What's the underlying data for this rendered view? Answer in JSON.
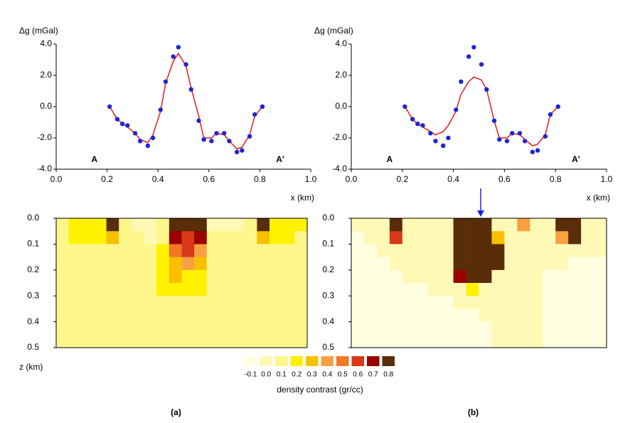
{
  "chart_data": [
    {
      "type": "line",
      "ylabel": "Δg (mGal)",
      "xlabel": "x (km)",
      "x": [
        0.21,
        0.24,
        0.26,
        0.28,
        0.31,
        0.33,
        0.36,
        0.38,
        0.41,
        0.43,
        0.46,
        0.48,
        0.51,
        0.53,
        0.56,
        0.58,
        0.61,
        0.63,
        0.66,
        0.68,
        0.71,
        0.73,
        0.76,
        0.78,
        0.81
      ],
      "series": [
        {
          "type": "line",
          "color": "#e8191b",
          "values": [
            0.0,
            -0.8,
            -1.1,
            -1.3,
            -1.7,
            -2.1,
            -2.3,
            -1.8,
            -0.3,
            1.5,
            2.9,
            3.4,
            2.6,
            1.2,
            -0.6,
            -2.0,
            -2.0,
            -1.7,
            -1.8,
            -2.2,
            -2.7,
            -2.6,
            -1.8,
            -0.6,
            0.0
          ]
        },
        {
          "type": "scatter",
          "color": "#1f24d6",
          "values": [
            0.0,
            -0.8,
            -1.1,
            -1.2,
            -1.7,
            -2.2,
            -2.5,
            -2.0,
            -0.2,
            1.6,
            3.2,
            3.8,
            2.7,
            1.1,
            -0.9,
            -2.1,
            -2.2,
            -1.7,
            -1.7,
            -2.2,
            -2.9,
            -2.8,
            -1.9,
            -0.5,
            0.0
          ]
        }
      ],
      "xlim": [
        0,
        1
      ],
      "ylim": [
        -4,
        4
      ],
      "xticks": [
        {
          "value": 0,
          "label": "0.0"
        },
        0.2,
        0.4,
        0.6,
        0.8,
        {
          "value": 1,
          "label": "1.0"
        }
      ],
      "yticks": [
        {
          "value": -4,
          "label": "-4.0"
        },
        {
          "value": -2,
          "label": "-2.0"
        },
        {
          "value": 0,
          "label": "0.0"
        },
        {
          "value": 2,
          "label": "2.0"
        },
        {
          "value": 4,
          "label": "4.0"
        }
      ],
      "annotations": [
        {
          "text": "A",
          "x": 0.15,
          "y": -3.4
        },
        {
          "text": "A'",
          "x": 0.88,
          "y": -3.4
        }
      ]
    },
    {
      "type": "heatmap",
      "ylabel": "z (km)",
      "caption": "(a)",
      "ylim": [
        0,
        0.5
      ],
      "yreversed": true,
      "yticks": [
        {
          "value": 0,
          "label": "0.0"
        },
        0.1,
        0.2,
        0.3,
        0.4,
        0.5
      ],
      "values": [
        [
          0.1,
          0.2,
          0.2,
          0.2,
          0.8,
          0.1,
          0.0,
          0.0,
          0.1,
          0.8,
          0.8,
          0.8,
          0.0,
          0.0,
          0.0,
          0.1,
          0.8,
          0.2,
          0.2,
          0.2
        ],
        [
          0.1,
          0.2,
          0.2,
          0.2,
          0.3,
          0.1,
          0.1,
          0.0,
          0.1,
          0.7,
          0.6,
          0.7,
          0.1,
          0.1,
          0.1,
          0.1,
          0.3,
          0.2,
          0.2,
          0.1
        ],
        [
          0.1,
          0.1,
          0.1,
          0.1,
          0.1,
          0.1,
          0.1,
          0.1,
          0.2,
          0.5,
          0.6,
          0.4,
          0.1,
          0.1,
          0.1,
          0.1,
          0.1,
          0.1,
          0.1,
          0.1
        ],
        [
          0.1,
          0.1,
          0.1,
          0.1,
          0.1,
          0.1,
          0.1,
          0.1,
          0.2,
          0.3,
          0.4,
          0.3,
          0.1,
          0.1,
          0.1,
          0.1,
          0.1,
          0.1,
          0.1,
          0.1
        ],
        [
          0.1,
          0.1,
          0.1,
          0.1,
          0.1,
          0.1,
          0.1,
          0.1,
          0.2,
          0.3,
          0.2,
          0.2,
          0.1,
          0.1,
          0.1,
          0.1,
          0.1,
          0.1,
          0.1,
          0.1
        ],
        [
          0.1,
          0.1,
          0.1,
          0.1,
          0.1,
          0.1,
          0.1,
          0.1,
          0.2,
          0.2,
          0.2,
          0.2,
          0.1,
          0.1,
          0.1,
          0.1,
          0.1,
          0.1,
          0.1,
          0.1
        ],
        [
          0.1,
          0.1,
          0.1,
          0.1,
          0.1,
          0.1,
          0.1,
          0.1,
          0.1,
          0.1,
          0.1,
          0.1,
          0.1,
          0.1,
          0.1,
          0.1,
          0.1,
          0.1,
          0.1,
          0.1
        ],
        [
          0.1,
          0.1,
          0.1,
          0.1,
          0.1,
          0.1,
          0.1,
          0.1,
          0.1,
          0.1,
          0.1,
          0.1,
          0.1,
          0.1,
          0.1,
          0.1,
          0.1,
          0.1,
          0.1,
          0.1
        ],
        [
          0.1,
          0.1,
          0.1,
          0.1,
          0.1,
          0.1,
          0.1,
          0.1,
          0.1,
          0.1,
          0.1,
          0.1,
          0.1,
          0.1,
          0.1,
          0.1,
          0.1,
          0.1,
          0.1,
          0.1
        ],
        [
          0.1,
          0.1,
          0.1,
          0.1,
          0.1,
          0.1,
          0.1,
          0.1,
          0.1,
          0.1,
          0.1,
          0.1,
          0.1,
          0.1,
          0.1,
          0.1,
          0.1,
          0.1,
          0.1,
          0.1
        ]
      ],
      "colorscale": {
        "label": "density contrast (gr/cc)",
        "values": [
          -0.1,
          {
            "value": 0,
            "label": "0.0"
          },
          0.1,
          0.2,
          0.3,
          0.4,
          0.5,
          0.6,
          0.7,
          0.8
        ],
        "colors": [
          "#fffee0",
          "#fff9b5",
          "#fdf68a",
          "#fff200",
          "#f8c000",
          "#f9a040",
          "#f07828",
          "#d83818",
          "#9a0000",
          "#5a2d0a"
        ]
      }
    },
    {
      "type": "line",
      "ylabel": "Δg (mGal)",
      "xlabel": "x (km)",
      "x": [
        0.21,
        0.24,
        0.26,
        0.28,
        0.31,
        0.33,
        0.36,
        0.38,
        0.41,
        0.43,
        0.46,
        0.48,
        0.51,
        0.53,
        0.56,
        0.58,
        0.61,
        0.63,
        0.66,
        0.68,
        0.71,
        0.73,
        0.76,
        0.78,
        0.81
      ],
      "series": [
        {
          "type": "line",
          "color": "#e8191b",
          "values": [
            0.0,
            -0.8,
            -1.1,
            -1.3,
            -1.6,
            -1.8,
            -1.6,
            -1.2,
            -0.3,
            0.8,
            1.6,
            1.9,
            1.7,
            1.1,
            -0.9,
            -2.0,
            -2.0,
            -1.7,
            -1.8,
            -2.1,
            -2.5,
            -2.4,
            -1.8,
            -0.5,
            0.0
          ]
        },
        {
          "type": "scatter",
          "color": "#1f24d6",
          "values": [
            0.0,
            -0.8,
            -1.1,
            -1.2,
            -1.7,
            -2.2,
            -2.5,
            -2.0,
            -0.2,
            1.6,
            3.2,
            3.8,
            2.7,
            1.1,
            -0.9,
            -2.1,
            -2.2,
            -1.7,
            -1.7,
            -2.2,
            -2.9,
            -2.8,
            -1.9,
            -0.5,
            0.0
          ]
        }
      ],
      "xlim": [
        0,
        1
      ],
      "ylim": [
        -4,
        4
      ],
      "xticks": [
        {
          "value": 0,
          "label": "0.0"
        },
        0.2,
        0.4,
        0.6,
        0.8,
        {
          "value": 1,
          "label": "1.0"
        }
      ],
      "yticks": [
        {
          "value": -4,
          "label": "-4.0"
        },
        {
          "value": -2,
          "label": "-2.0"
        },
        {
          "value": 0,
          "label": "0.0"
        },
        {
          "value": 2,
          "label": "2.0"
        },
        {
          "value": 4,
          "label": "4.0"
        }
      ],
      "annotations": [
        {
          "text": "A",
          "x": 0.15,
          "y": -3.4
        },
        {
          "text": "A'",
          "x": 0.88,
          "y": -3.4
        }
      ]
    },
    {
      "type": "heatmap",
      "caption": "(b)",
      "ylim": [
        0,
        0.5
      ],
      "yreversed": true,
      "yticks": [
        {
          "value": 0,
          "label": "0.0"
        },
        0.1,
        0.2,
        0.3,
        0.4,
        0.5
      ],
      "values": [
        [
          0,
          0,
          0,
          0.8,
          0,
          0,
          0,
          0,
          0.8,
          0.8,
          0.8,
          0,
          0,
          0.4,
          0,
          0,
          0.8,
          0.8,
          0,
          0
        ],
        [
          -0.1,
          0,
          0,
          0.6,
          0,
          0,
          0,
          0,
          0.8,
          0.8,
          0.8,
          0.3,
          0,
          0,
          0,
          0,
          0.4,
          0.8,
          0,
          0
        ],
        [
          -0.1,
          -0.1,
          0,
          0,
          0,
          0,
          0,
          0,
          0.8,
          0.8,
          0.8,
          0.8,
          0,
          0,
          0,
          0,
          0,
          0,
          0,
          0
        ],
        [
          -0.1,
          -0.1,
          -0.1,
          0,
          0,
          0,
          0,
          0,
          0.8,
          0.8,
          0.8,
          0.8,
          0,
          0,
          0,
          0,
          0,
          -0.1,
          -0.1,
          -0.1
        ],
        [
          -0.1,
          -0.1,
          -0.1,
          -0.1,
          0,
          0,
          0,
          0,
          0.7,
          0.8,
          0.8,
          0,
          0,
          0,
          0,
          -0.1,
          -0.1,
          -0.1,
          -0.1,
          -0.1
        ],
        [
          -0.1,
          -0.1,
          -0.1,
          -0.1,
          -0.1,
          -0.1,
          0,
          0,
          0,
          0.2,
          0,
          0,
          0,
          0,
          0,
          -0.1,
          -0.1,
          -0.1,
          -0.1,
          -0.1
        ],
        [
          -0.1,
          -0.1,
          -0.1,
          -0.1,
          -0.1,
          -0.1,
          -0.1,
          -0.1,
          0,
          0,
          0,
          0,
          0,
          0,
          0,
          -0.1,
          -0.1,
          -0.1,
          -0.1,
          -0.1
        ],
        [
          -0.1,
          -0.1,
          -0.1,
          -0.1,
          -0.1,
          -0.1,
          -0.1,
          -0.1,
          -0.1,
          -0.1,
          0,
          0,
          0,
          0,
          0,
          -0.1,
          -0.1,
          -0.1,
          -0.1,
          -0.1
        ],
        [
          -0.1,
          -0.1,
          -0.1,
          -0.1,
          -0.1,
          -0.1,
          -0.1,
          -0.1,
          -0.1,
          -0.1,
          -0.1,
          0,
          0,
          0,
          0,
          -0.1,
          -0.1,
          -0.1,
          -0.1,
          -0.1
        ],
        [
          -0.1,
          -0.1,
          -0.1,
          -0.1,
          -0.1,
          -0.1,
          -0.1,
          -0.1,
          -0.1,
          -0.1,
          -0.1,
          0,
          0,
          0,
          0,
          -0.1,
          -0.1,
          -0.1,
          -0.1,
          -0.1
        ]
      ]
    }
  ]
}
